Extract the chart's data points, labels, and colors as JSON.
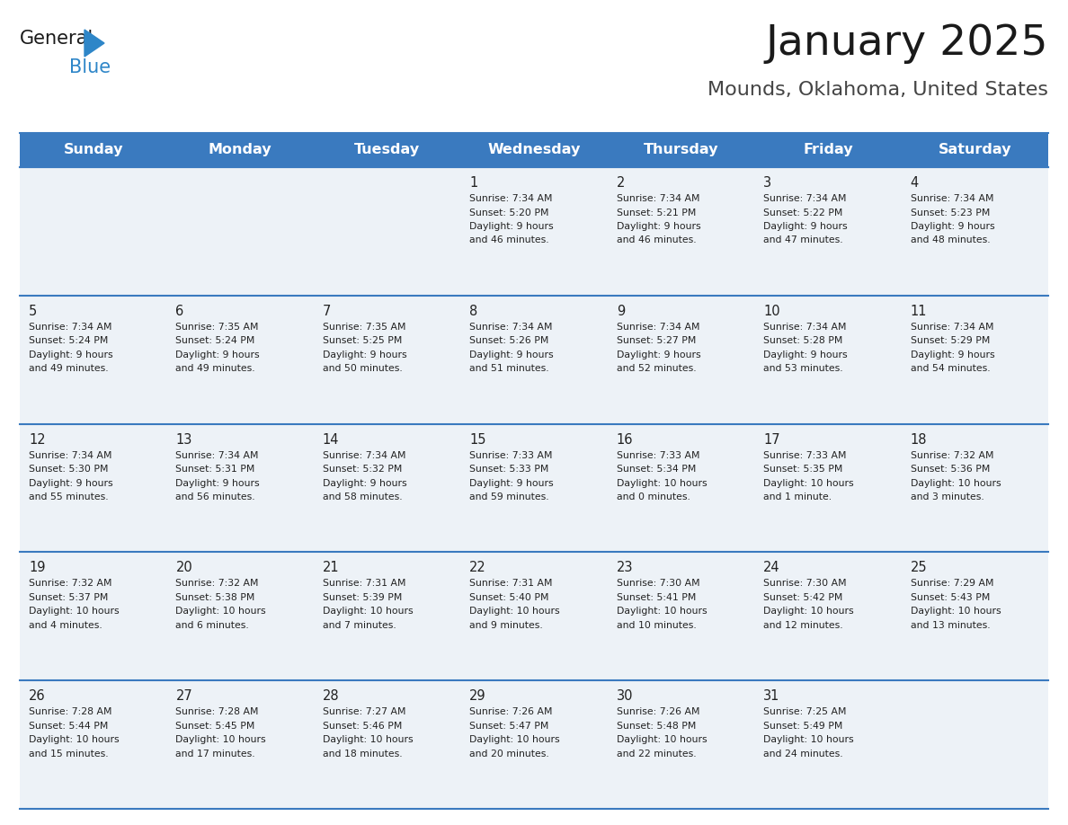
{
  "title": "January 2025",
  "subtitle": "Mounds, Oklahoma, United States",
  "header_color": "#3a7abf",
  "header_text_color": "#ffffff",
  "cell_bg_color": "#edf2f7",
  "border_color": "#3a7abf",
  "text_color": "#222222",
  "days_of_week": [
    "Sunday",
    "Monday",
    "Tuesday",
    "Wednesday",
    "Thursday",
    "Friday",
    "Saturday"
  ],
  "weeks": [
    [
      {
        "day": null,
        "sunrise": null,
        "sunset": null,
        "daylight": null
      },
      {
        "day": null,
        "sunrise": null,
        "sunset": null,
        "daylight": null
      },
      {
        "day": null,
        "sunrise": null,
        "sunset": null,
        "daylight": null
      },
      {
        "day": 1,
        "sunrise": "7:34 AM",
        "sunset": "5:20 PM",
        "daylight": "9 hours\nand 46 minutes."
      },
      {
        "day": 2,
        "sunrise": "7:34 AM",
        "sunset": "5:21 PM",
        "daylight": "9 hours\nand 46 minutes."
      },
      {
        "day": 3,
        "sunrise": "7:34 AM",
        "sunset": "5:22 PM",
        "daylight": "9 hours\nand 47 minutes."
      },
      {
        "day": 4,
        "sunrise": "7:34 AM",
        "sunset": "5:23 PM",
        "daylight": "9 hours\nand 48 minutes."
      }
    ],
    [
      {
        "day": 5,
        "sunrise": "7:34 AM",
        "sunset": "5:24 PM",
        "daylight": "9 hours\nand 49 minutes."
      },
      {
        "day": 6,
        "sunrise": "7:35 AM",
        "sunset": "5:24 PM",
        "daylight": "9 hours\nand 49 minutes."
      },
      {
        "day": 7,
        "sunrise": "7:35 AM",
        "sunset": "5:25 PM",
        "daylight": "9 hours\nand 50 minutes."
      },
      {
        "day": 8,
        "sunrise": "7:34 AM",
        "sunset": "5:26 PM",
        "daylight": "9 hours\nand 51 minutes."
      },
      {
        "day": 9,
        "sunrise": "7:34 AM",
        "sunset": "5:27 PM",
        "daylight": "9 hours\nand 52 minutes."
      },
      {
        "day": 10,
        "sunrise": "7:34 AM",
        "sunset": "5:28 PM",
        "daylight": "9 hours\nand 53 minutes."
      },
      {
        "day": 11,
        "sunrise": "7:34 AM",
        "sunset": "5:29 PM",
        "daylight": "9 hours\nand 54 minutes."
      }
    ],
    [
      {
        "day": 12,
        "sunrise": "7:34 AM",
        "sunset": "5:30 PM",
        "daylight": "9 hours\nand 55 minutes."
      },
      {
        "day": 13,
        "sunrise": "7:34 AM",
        "sunset": "5:31 PM",
        "daylight": "9 hours\nand 56 minutes."
      },
      {
        "day": 14,
        "sunrise": "7:34 AM",
        "sunset": "5:32 PM",
        "daylight": "9 hours\nand 58 minutes."
      },
      {
        "day": 15,
        "sunrise": "7:33 AM",
        "sunset": "5:33 PM",
        "daylight": "9 hours\nand 59 minutes."
      },
      {
        "day": 16,
        "sunrise": "7:33 AM",
        "sunset": "5:34 PM",
        "daylight": "10 hours\nand 0 minutes."
      },
      {
        "day": 17,
        "sunrise": "7:33 AM",
        "sunset": "5:35 PM",
        "daylight": "10 hours\nand 1 minute."
      },
      {
        "day": 18,
        "sunrise": "7:32 AM",
        "sunset": "5:36 PM",
        "daylight": "10 hours\nand 3 minutes."
      }
    ],
    [
      {
        "day": 19,
        "sunrise": "7:32 AM",
        "sunset": "5:37 PM",
        "daylight": "10 hours\nand 4 minutes."
      },
      {
        "day": 20,
        "sunrise": "7:32 AM",
        "sunset": "5:38 PM",
        "daylight": "10 hours\nand 6 minutes."
      },
      {
        "day": 21,
        "sunrise": "7:31 AM",
        "sunset": "5:39 PM",
        "daylight": "10 hours\nand 7 minutes."
      },
      {
        "day": 22,
        "sunrise": "7:31 AM",
        "sunset": "5:40 PM",
        "daylight": "10 hours\nand 9 minutes."
      },
      {
        "day": 23,
        "sunrise": "7:30 AM",
        "sunset": "5:41 PM",
        "daylight": "10 hours\nand 10 minutes."
      },
      {
        "day": 24,
        "sunrise": "7:30 AM",
        "sunset": "5:42 PM",
        "daylight": "10 hours\nand 12 minutes."
      },
      {
        "day": 25,
        "sunrise": "7:29 AM",
        "sunset": "5:43 PM",
        "daylight": "10 hours\nand 13 minutes."
      }
    ],
    [
      {
        "day": 26,
        "sunrise": "7:28 AM",
        "sunset": "5:44 PM",
        "daylight": "10 hours\nand 15 minutes."
      },
      {
        "day": 27,
        "sunrise": "7:28 AM",
        "sunset": "5:45 PM",
        "daylight": "10 hours\nand 17 minutes."
      },
      {
        "day": 28,
        "sunrise": "7:27 AM",
        "sunset": "5:46 PM",
        "daylight": "10 hours\nand 18 minutes."
      },
      {
        "day": 29,
        "sunrise": "7:26 AM",
        "sunset": "5:47 PM",
        "daylight": "10 hours\nand 20 minutes."
      },
      {
        "day": 30,
        "sunrise": "7:26 AM",
        "sunset": "5:48 PM",
        "daylight": "10 hours\nand 22 minutes."
      },
      {
        "day": 31,
        "sunrise": "7:25 AM",
        "sunset": "5:49 PM",
        "daylight": "10 hours\nand 24 minutes."
      },
      {
        "day": null,
        "sunrise": null,
        "sunset": null,
        "daylight": null
      }
    ]
  ]
}
